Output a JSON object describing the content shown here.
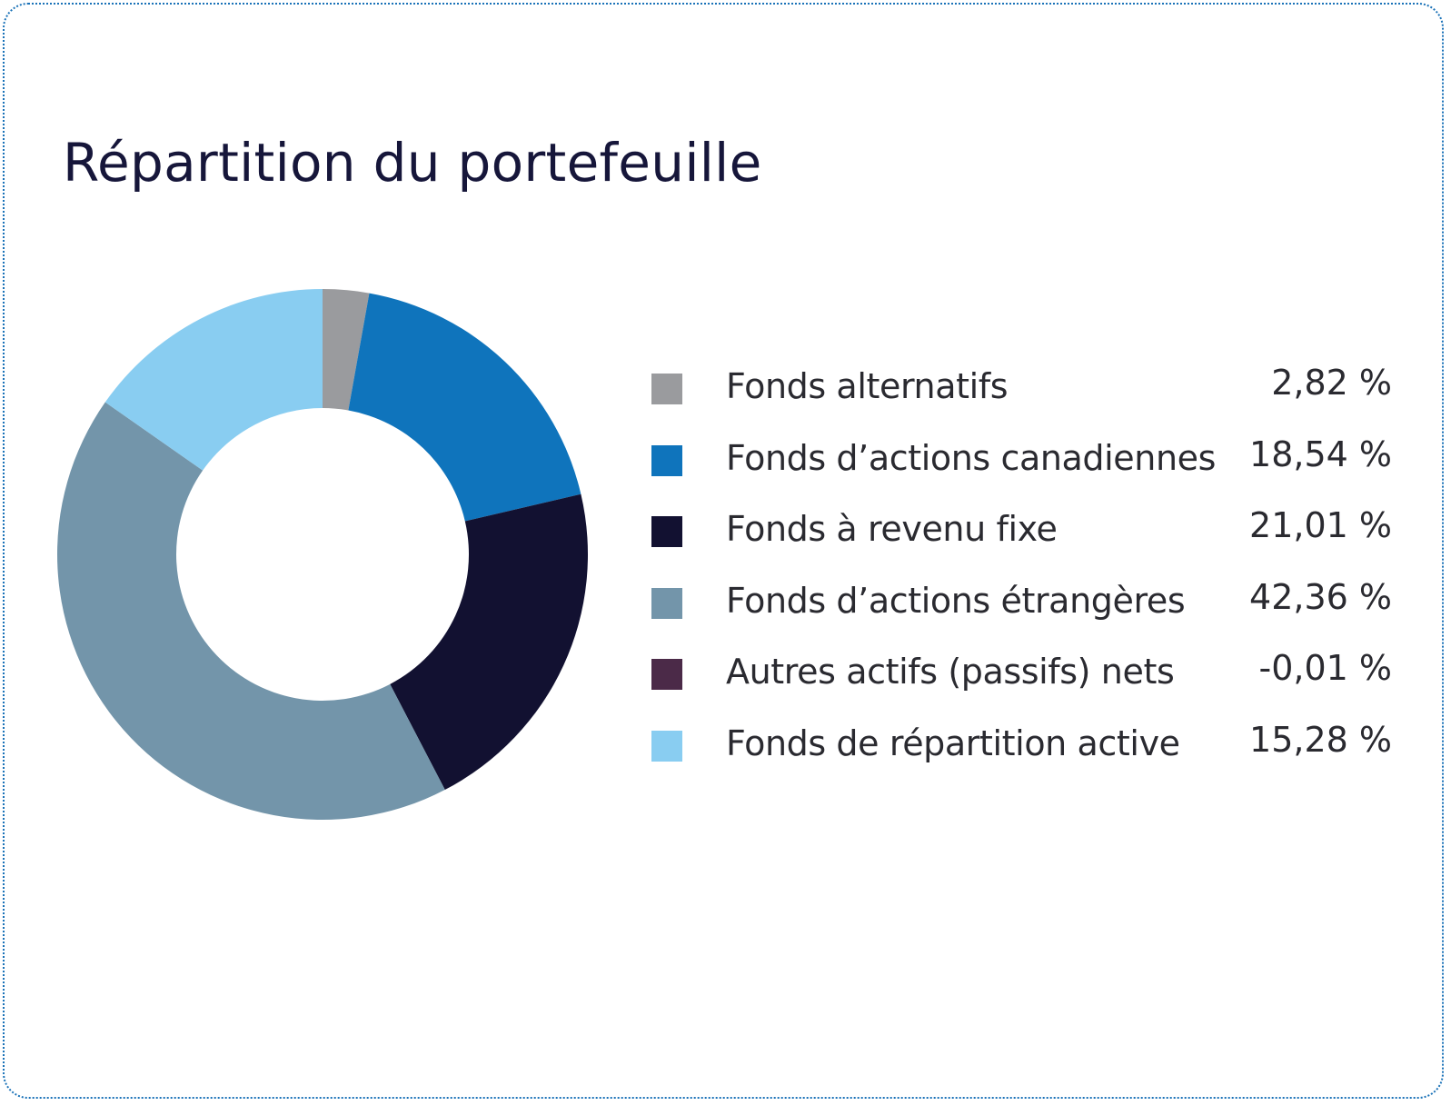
{
  "chart_data": {
    "type": "pie",
    "title": "Répartition du portefeuille",
    "slices": [
      {
        "label": "Fonds alternatifs",
        "value": 2.82,
        "display": "2,82 %",
        "color": "#9a9b9e"
      },
      {
        "label": "Fonds d’actions canadiennes",
        "value": 18.54,
        "display": "18,54 %",
        "color": "#0f74bc"
      },
      {
        "label": "Fonds à revenu fixe",
        "value": 21.01,
        "display": "21,01 %",
        "color": "#121131"
      },
      {
        "label": "Fonds d’actions étrangères",
        "value": 42.36,
        "display": "42,36 %",
        "color": "#7395aa"
      },
      {
        "label": "Autres actifs (passifs) nets",
        "value": -0.01,
        "display": "-0,01 %",
        "color": "#4b2a48"
      },
      {
        "label": "Fonds de répartition active",
        "value": 15.28,
        "display": "15,28 %",
        "color": "#89cdf1"
      }
    ],
    "legend_position": "right",
    "style": "donut"
  }
}
